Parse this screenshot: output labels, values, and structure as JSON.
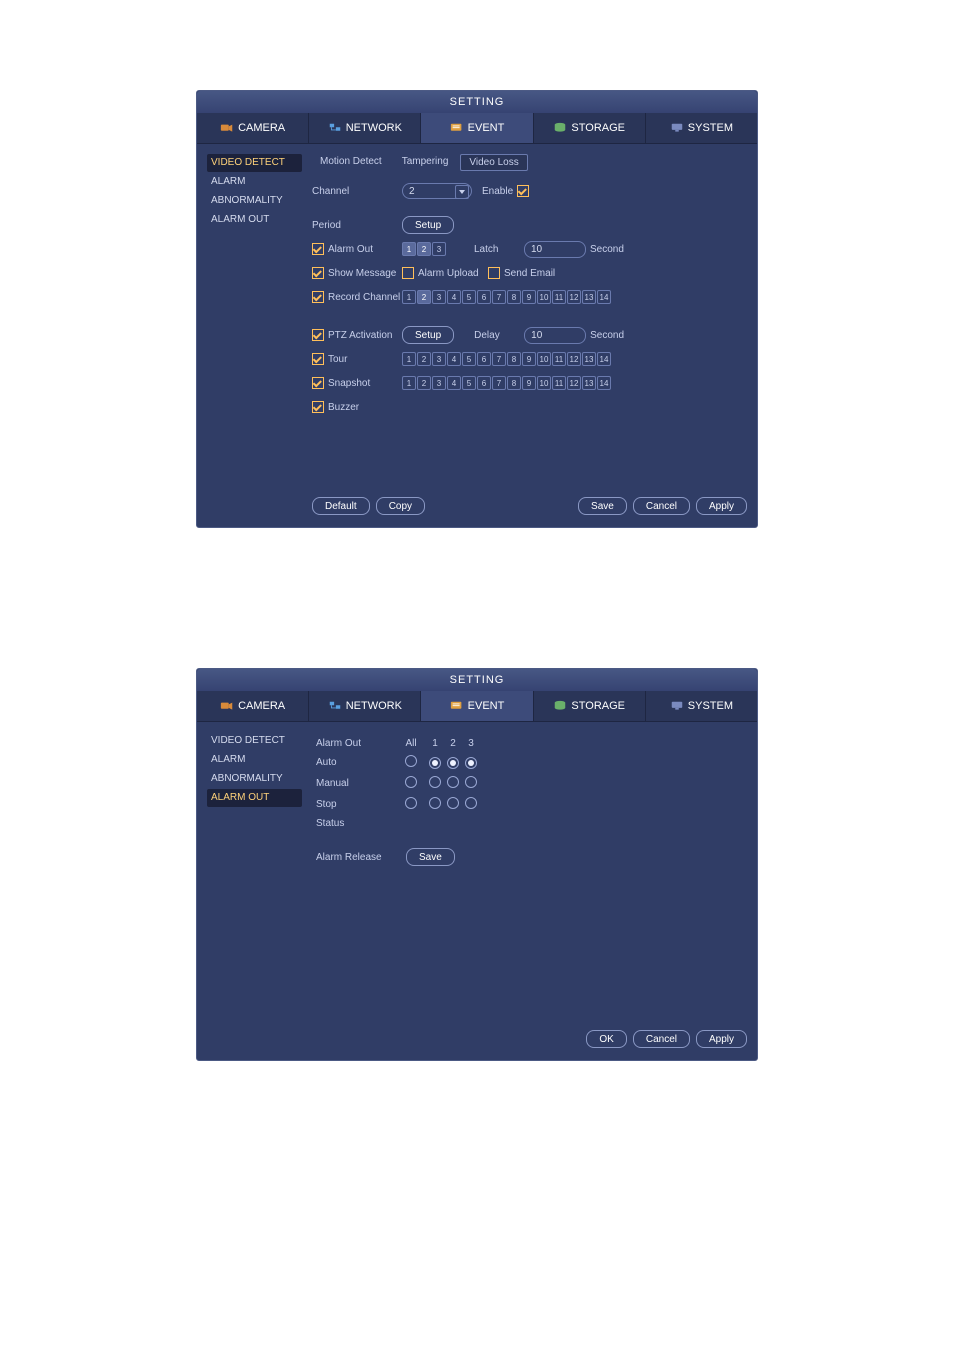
{
  "colors": {
    "window_bg": "#303d66",
    "titlebar_grad_top": "#475784",
    "titlebar_grad_bottom": "#364372",
    "border": "#4c5a84",
    "text": "#c8d0eb",
    "highlight": "#ffd27a",
    "check_orange": "#ffbf5a"
  },
  "window1": {
    "title": "SETTING",
    "topnav": [
      {
        "label": "CAMERA",
        "icon": "camera-icon",
        "active": false
      },
      {
        "label": "NETWORK",
        "icon": "network-icon",
        "active": false
      },
      {
        "label": "EVENT",
        "icon": "event-icon",
        "active": true
      },
      {
        "label": "STORAGE",
        "icon": "storage-icon",
        "active": false
      },
      {
        "label": "SYSTEM",
        "icon": "system-icon",
        "active": false
      }
    ],
    "sidebar": [
      {
        "label": "VIDEO DETECT",
        "selected": true
      },
      {
        "label": "ALARM",
        "selected": false
      },
      {
        "label": "ABNORMALITY",
        "selected": false
      },
      {
        "label": "ALARM OUT",
        "selected": false
      }
    ],
    "tabs": [
      {
        "label": "Motion Detect",
        "active": false
      },
      {
        "label": "Tampering",
        "active": false
      },
      {
        "label": "Video Loss",
        "active": true
      }
    ],
    "channel_label": "Channel",
    "channel_value": "2",
    "enable_label": "Enable",
    "enable_checked": true,
    "period_label": "Period",
    "period_button": "Setup",
    "alarmout_label": "Alarm Out",
    "alarmout_checked": true,
    "alarmout_slots": {
      "total": 3,
      "selected": [
        1,
        2
      ]
    },
    "latch_label": "Latch",
    "latch_value": "10",
    "latch_unit": "Second",
    "showmsg_label": "Show Message",
    "showmsg_checked": true,
    "alarmupload_label": "Alarm Upload",
    "alarmupload_checked": false,
    "sendemail_label": "Send Email",
    "sendemail_checked": false,
    "recchan_label": "Record Channel",
    "recchan_checked": true,
    "recchan_slots": {
      "total": 14,
      "selected": [
        2
      ]
    },
    "ptz_label": "PTZ Activation",
    "ptz_checked": true,
    "ptz_button": "Setup",
    "delay_label": "Delay",
    "delay_value": "10",
    "delay_unit": "Second",
    "tour_label": "Tour",
    "tour_checked": true,
    "tour_slots": {
      "total": 14,
      "selected": []
    },
    "snapshot_label": "Snapshot",
    "snapshot_checked": true,
    "snapshot_slots": {
      "total": 14,
      "selected": []
    },
    "buzzer_label": "Buzzer",
    "buzzer_checked": true,
    "footer": {
      "default": "Default",
      "copy": "Copy",
      "save": "Save",
      "cancel": "Cancel",
      "apply": "Apply"
    }
  },
  "window2": {
    "title": "SETTING",
    "topnav": [
      {
        "label": "CAMERA",
        "icon": "camera-icon",
        "active": false
      },
      {
        "label": "NETWORK",
        "icon": "network-icon",
        "active": false
      },
      {
        "label": "EVENT",
        "icon": "event-icon",
        "active": true
      },
      {
        "label": "STORAGE",
        "icon": "storage-icon",
        "active": false
      },
      {
        "label": "SYSTEM",
        "icon": "system-icon",
        "active": false
      }
    ],
    "sidebar": [
      {
        "label": "VIDEO DETECT",
        "selected": false
      },
      {
        "label": "ALARM",
        "selected": false
      },
      {
        "label": "ABNORMALITY",
        "selected": false
      },
      {
        "label": "ALARM OUT",
        "selected": true
      }
    ],
    "grid": {
      "header": {
        "c0": "Alarm Out",
        "c1": "All",
        "c2": "1",
        "c3": "2",
        "c4": "3"
      },
      "rows": [
        {
          "label": "Auto",
          "all": false,
          "ch": [
            true,
            true,
            true
          ]
        },
        {
          "label": "Manual",
          "all": false,
          "ch": [
            false,
            false,
            false
          ]
        },
        {
          "label": "Stop",
          "all": false,
          "ch": [
            false,
            false,
            false
          ]
        }
      ],
      "status_label": "Status"
    },
    "alarm_release_label": "Alarm Release",
    "alarm_release_button": "Save",
    "footer": {
      "ok": "OK",
      "cancel": "Cancel",
      "apply": "Apply"
    }
  }
}
